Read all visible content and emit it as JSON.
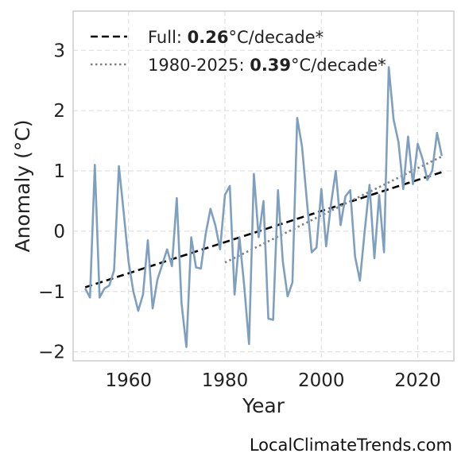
{
  "watermark": "LocalClimateTrends.com",
  "chart_data": {
    "type": "line",
    "xlabel": "Year",
    "ylabel": "Anomaly (°C)",
    "xlim": [
      1948.5,
      2027.5
    ],
    "ylim": [
      -2.15,
      3.65
    ],
    "xticks": [
      1960,
      1980,
      2000,
      2020
    ],
    "yticks": [
      -2,
      -1,
      0,
      1,
      2,
      3
    ],
    "ytick_labels": [
      "−2",
      "−1",
      "0",
      "1",
      "2",
      "3"
    ],
    "grid": true,
    "legend_position": "top-left",
    "colors": {
      "series": "#7f9fbf",
      "full_trend": "#000000",
      "recent_trend": "#808080",
      "grid": "#e0e0e0",
      "frame": "#cccccc"
    },
    "series": [
      {
        "x": [
          1951,
          1952,
          1953,
          1954,
          1955,
          1956,
          1957,
          1958,
          1959,
          1960,
          1961,
          1962,
          1963,
          1964,
          1965,
          1966,
          1967,
          1968,
          1969,
          1970,
          1971,
          1972,
          1973,
          1974,
          1975,
          1976,
          1977,
          1978,
          1979,
          1980,
          1981,
          1982,
          1983,
          1984,
          1985,
          1986,
          1987,
          1988,
          1989,
          1990,
          1991,
          1992,
          1993,
          1994,
          1995,
          1996,
          1997,
          1998,
          1999,
          2000,
          2001,
          2002,
          2003,
          2004,
          2005,
          2006,
          2007,
          2008,
          2009,
          2010,
          2011,
          2012,
          2013,
          2014,
          2015,
          2016,
          2017,
          2018,
          2019,
          2020,
          2021,
          2022,
          2023,
          2024,
          2025
        ],
        "values": [
          -0.95,
          -1.1,
          1.1,
          -1.1,
          -0.95,
          -0.9,
          -0.65,
          1.08,
          0.3,
          -0.5,
          -1.0,
          -1.32,
          -1.05,
          -0.15,
          -1.28,
          -0.8,
          -0.55,
          -0.3,
          -0.58,
          0.55,
          -1.2,
          -1.92,
          -0.1,
          -0.6,
          -0.62,
          -0.05,
          0.37,
          0.1,
          -0.3,
          0.6,
          0.75,
          -1.05,
          -0.1,
          -0.9,
          -1.87,
          0.95,
          -0.1,
          0.5,
          -1.45,
          -1.47,
          0.68,
          -0.5,
          -1.08,
          -0.85,
          1.88,
          1.4,
          0.5,
          -0.35,
          -0.27,
          0.7,
          -0.25,
          0.45,
          1.0,
          0.1,
          0.58,
          0.68,
          -0.42,
          -0.82,
          0.0,
          0.77,
          -0.45,
          0.6,
          -0.35,
          2.72,
          1.85,
          1.48,
          0.7,
          1.57,
          0.78,
          1.45,
          1.2,
          0.85,
          1.0,
          1.63,
          1.25
        ]
      }
    ],
    "trends": [
      {
        "label_prefix": "Full: ",
        "label_value": "0.26",
        "label_suffix": "°C/decade*",
        "style": "dashed",
        "x": [
          1951,
          2025
        ],
        "y": [
          -0.93,
          0.98
        ]
      },
      {
        "label_prefix": "1980-2025: ",
        "label_value": "0.39",
        "label_suffix": "°C/decade*",
        "style": "dotted",
        "x": [
          1980,
          2025
        ],
        "y": [
          -0.52,
          1.24
        ]
      }
    ]
  }
}
